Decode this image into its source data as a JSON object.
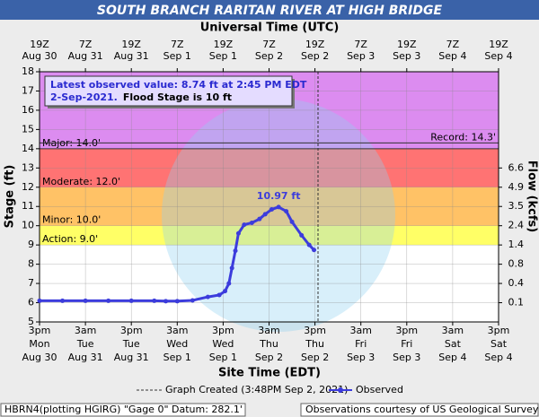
{
  "title": "SOUTH BRANCH RARITAN RIVER AT HIGH BRIDGE",
  "chart_data": {
    "type": "line",
    "top_axis_label": "Universal Time (UTC)",
    "xlabel": "Site Time (EDT)",
    "ylabel": "Stage (ft)",
    "y2label": "Flow (kcfs)",
    "xlim": [
      0,
      120
    ],
    "xticks": [
      {
        "value": 0,
        "label": [
          "3pm",
          "Mon",
          "Aug 30"
        ]
      },
      {
        "value": 12,
        "label": [
          "3am",
          "Tue",
          "Aug 31"
        ]
      },
      {
        "value": 24,
        "label": [
          "3pm",
          "Tue",
          "Aug 31"
        ]
      },
      {
        "value": 36,
        "label": [
          "3am",
          "Wed",
          "Sep 1"
        ]
      },
      {
        "value": 48,
        "label": [
          "3pm",
          "Wed",
          "Sep 1"
        ]
      },
      {
        "value": 60,
        "label": [
          "3am",
          "Thu",
          "Sep 2"
        ]
      },
      {
        "value": 72,
        "label": [
          "3pm",
          "Thu",
          "Sep 2"
        ]
      },
      {
        "value": 84,
        "label": [
          "3am",
          "Fri",
          "Sep 3"
        ]
      },
      {
        "value": 96,
        "label": [
          "3pm",
          "Fri",
          "Sep 3"
        ]
      },
      {
        "value": 108,
        "label": [
          "3am",
          "Sat",
          "Sep 4"
        ]
      },
      {
        "value": 120,
        "label": [
          "3pm",
          "Sat",
          "Sep 4"
        ]
      }
    ],
    "top_xticks": [
      {
        "value": 0,
        "label": [
          "19Z",
          "Aug 30"
        ]
      },
      {
        "value": 12,
        "label": [
          "7Z",
          "Aug 31"
        ]
      },
      {
        "value": 24,
        "label": [
          "19Z",
          "Aug 31"
        ]
      },
      {
        "value": 36,
        "label": [
          "7Z",
          "Sep 1"
        ]
      },
      {
        "value": 48,
        "label": [
          "19Z",
          "Sep 1"
        ]
      },
      {
        "value": 60,
        "label": [
          "7Z",
          "Sep 2"
        ]
      },
      {
        "value": 72,
        "label": [
          "19Z",
          "Sep 2"
        ]
      },
      {
        "value": 84,
        "label": [
          "7Z",
          "Sep 3"
        ]
      },
      {
        "value": 96,
        "label": [
          "19Z",
          "Sep 3"
        ]
      },
      {
        "value": 108,
        "label": [
          "7Z",
          "Sep 4"
        ]
      },
      {
        "value": 120,
        "label": [
          "19Z",
          "Sep 4"
        ]
      }
    ],
    "ylim": [
      5,
      18
    ],
    "yticks": [
      5,
      6,
      7,
      8,
      9,
      10,
      11,
      12,
      13,
      14,
      15,
      16,
      17,
      18
    ],
    "grid": true,
    "flow_ticks": [
      {
        "flow": 6.6,
        "stage": 13
      },
      {
        "flow": 4.9,
        "stage": 12
      },
      {
        "flow": 3.5,
        "stage": 11
      },
      {
        "flow": 2.4,
        "stage": 10
      },
      {
        "flow": 1.4,
        "stage": 9
      },
      {
        "flow": 0.8,
        "stage": 8
      },
      {
        "flow": 0.4,
        "stage": 7
      },
      {
        "flow": 0.1,
        "stage": 6
      }
    ],
    "flood_levels": [
      {
        "label": "Action: 9.0'",
        "value": 9,
        "color": "#ffff66"
      },
      {
        "label": "Minor: 10.0'",
        "value": 10,
        "color": "#ffc266"
      },
      {
        "label": "Moderate: 12.0'",
        "value": 12,
        "color": "#ff7373"
      },
      {
        "label": "Major: 14.0'",
        "value": 14,
        "color": "#dc8cf0"
      }
    ],
    "record": {
      "label": "Record: 14.3'",
      "value": 14.3
    },
    "series": [
      {
        "name": "Observed",
        "color": "#3c3cdc",
        "x": [
          0,
          6,
          12,
          18,
          24,
          30,
          33,
          36,
          40,
          44,
          47,
          48.5,
          49.5,
          50.3,
          51.2,
          52,
          53.5,
          55.5,
          57.5,
          59,
          60.7,
          62.5,
          64.5,
          66,
          68.5,
          70.5,
          71.75
        ],
        "values": [
          6.1,
          6.1,
          6.1,
          6.1,
          6.1,
          6.1,
          6.08,
          6.08,
          6.12,
          6.3,
          6.4,
          6.6,
          7.0,
          7.8,
          8.7,
          9.6,
          10.05,
          10.15,
          10.35,
          10.6,
          10.85,
          10.97,
          10.75,
          10.2,
          9.5,
          9.0,
          8.74
        ]
      }
    ],
    "peak": {
      "label": "10.97 ft",
      "x": 62.5,
      "value": 10.97
    },
    "graph_created": {
      "label": "Graph Created (3:48PM Sep 2, 2021)",
      "x": 72.8
    },
    "latest": [
      "Latest observed value: 8.74 ft at 2:45 PM EDT",
      "2-Sep-2021.",
      "Flood Stage is 10 ft"
    ],
    "footer_left": "HBRN4(plotting HGIRG) \"Gage 0\" Datum: 282.1'",
    "footer_right": "Observations courtesy of US Geological Survey"
  }
}
